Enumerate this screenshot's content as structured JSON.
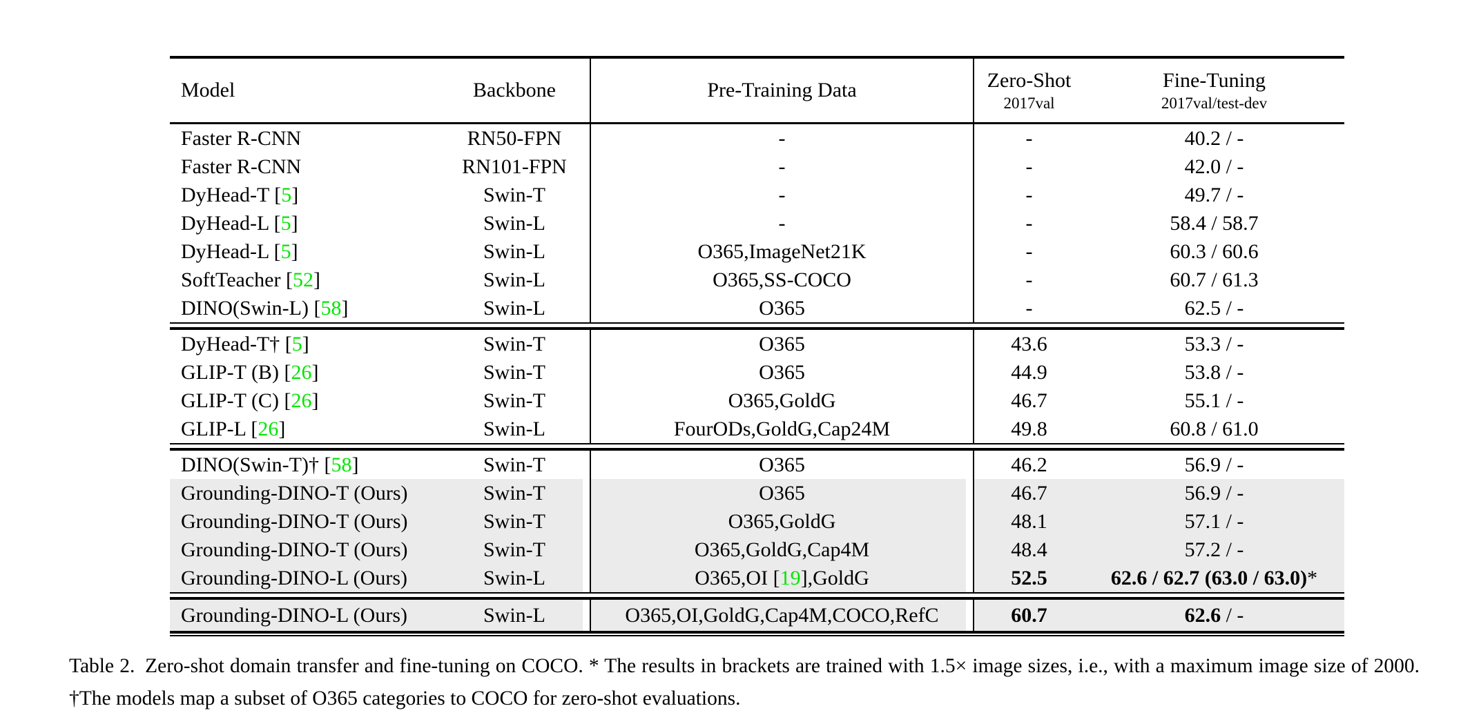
{
  "colors": {
    "ref_green": "#00e600",
    "row_gray": "#ebebeb",
    "rule_black": "#000000"
  },
  "table": {
    "headers": {
      "model": "Model",
      "backbone": "Backbone",
      "pretraining": "Pre-Training Data",
      "zeroshot": {
        "line1": "Zero-Shot",
        "line2": "2017val"
      },
      "finetuning": {
        "line1": "Fine-Tuning",
        "line2": "2017val/test-dev"
      }
    },
    "sections": [
      {
        "rows": [
          {
            "model": [
              {
                "t": "Faster R-CNN"
              }
            ],
            "backbone": [
              {
                "t": "RN50-FPN"
              }
            ],
            "pretrain": [
              {
                "t": "-"
              }
            ],
            "zeroshot": [
              {
                "t": "-"
              }
            ],
            "finetune": [
              {
                "t": "40.2 / -"
              }
            ]
          },
          {
            "model": [
              {
                "t": "Faster R-CNN"
              }
            ],
            "backbone": [
              {
                "t": "RN101-FPN"
              }
            ],
            "pretrain": [
              {
                "t": "-"
              }
            ],
            "zeroshot": [
              {
                "t": "-"
              }
            ],
            "finetune": [
              {
                "t": "42.0 / -"
              }
            ]
          },
          {
            "model": [
              {
                "t": "DyHead-T "
              },
              {
                "r": "5"
              }
            ],
            "backbone": [
              {
                "t": "Swin-T"
              }
            ],
            "pretrain": [
              {
                "t": "-"
              }
            ],
            "zeroshot": [
              {
                "t": "-"
              }
            ],
            "finetune": [
              {
                "t": "49.7 / -"
              }
            ]
          },
          {
            "model": [
              {
                "t": "DyHead-L "
              },
              {
                "r": "5"
              }
            ],
            "backbone": [
              {
                "t": "Swin-L"
              }
            ],
            "pretrain": [
              {
                "t": "-"
              }
            ],
            "zeroshot": [
              {
                "t": "-"
              }
            ],
            "finetune": [
              {
                "t": "58.4 / 58.7"
              }
            ]
          },
          {
            "model": [
              {
                "t": "DyHead-L "
              },
              {
                "r": "5"
              }
            ],
            "backbone": [
              {
                "t": "Swin-L"
              }
            ],
            "pretrain": [
              {
                "t": "O365,ImageNet21K"
              }
            ],
            "zeroshot": [
              {
                "t": "-"
              }
            ],
            "finetune": [
              {
                "t": "60.3 / 60.6"
              }
            ]
          },
          {
            "model": [
              {
                "t": "SoftTeacher "
              },
              {
                "r": "52"
              }
            ],
            "backbone": [
              {
                "t": "Swin-L"
              }
            ],
            "pretrain": [
              {
                "t": "O365,SS-COCO"
              }
            ],
            "zeroshot": [
              {
                "t": "-"
              }
            ],
            "finetune": [
              {
                "t": "60.7 / 61.3"
              }
            ]
          },
          {
            "model": [
              {
                "t": "DINO(Swin-L) "
              },
              {
                "r": "58"
              }
            ],
            "backbone": [
              {
                "t": "Swin-L"
              }
            ],
            "pretrain": [
              {
                "t": "O365"
              }
            ],
            "zeroshot": [
              {
                "t": "-"
              }
            ],
            "finetune": [
              {
                "t": "62.5 / -"
              }
            ]
          }
        ]
      },
      {
        "rows": [
          {
            "model": [
              {
                "t": "DyHead-T† "
              },
              {
                "r": "5"
              }
            ],
            "backbone": [
              {
                "t": "Swin-T"
              }
            ],
            "pretrain": [
              {
                "t": "O365"
              }
            ],
            "zeroshot": [
              {
                "t": "43.6"
              }
            ],
            "finetune": [
              {
                "t": "53.3 / -"
              }
            ]
          },
          {
            "model": [
              {
                "t": "GLIP-T (B) "
              },
              {
                "r": "26"
              }
            ],
            "backbone": [
              {
                "t": "Swin-T"
              }
            ],
            "pretrain": [
              {
                "t": "O365"
              }
            ],
            "zeroshot": [
              {
                "t": "44.9"
              }
            ],
            "finetune": [
              {
                "t": "53.8 / -"
              }
            ]
          },
          {
            "model": [
              {
                "t": "GLIP-T (C) "
              },
              {
                "r": "26"
              }
            ],
            "backbone": [
              {
                "t": "Swin-T"
              }
            ],
            "pretrain": [
              {
                "t": "O365,GoldG"
              }
            ],
            "zeroshot": [
              {
                "t": "46.7"
              }
            ],
            "finetune": [
              {
                "t": "55.1 / -"
              }
            ]
          },
          {
            "model": [
              {
                "t": "GLIP-L "
              },
              {
                "r": "26"
              }
            ],
            "backbone": [
              {
                "t": "Swin-L"
              }
            ],
            "pretrain": [
              {
                "t": "FourODs,GoldG,Cap24M"
              }
            ],
            "zeroshot": [
              {
                "t": "49.8"
              }
            ],
            "finetune": [
              {
                "t": "60.8 / 61.0"
              }
            ]
          }
        ]
      },
      {
        "rows": [
          {
            "model": [
              {
                "t": "DINO(Swin-T)† "
              },
              {
                "r": "58"
              }
            ],
            "backbone": [
              {
                "t": "Swin-T"
              }
            ],
            "pretrain": [
              {
                "t": "O365"
              }
            ],
            "zeroshot": [
              {
                "t": "46.2"
              }
            ],
            "finetune": [
              {
                "t": "56.9 / -"
              }
            ]
          },
          {
            "gray": true,
            "model": [
              {
                "t": "Grounding-DINO-T (Ours)"
              }
            ],
            "backbone": [
              {
                "t": "Swin-T"
              }
            ],
            "pretrain": [
              {
                "t": "O365"
              }
            ],
            "zeroshot": [
              {
                "t": "46.7"
              }
            ],
            "finetune": [
              {
                "t": "56.9 / -"
              }
            ]
          },
          {
            "gray": true,
            "model": [
              {
                "t": "Grounding-DINO-T (Ours)"
              }
            ],
            "backbone": [
              {
                "t": "Swin-T"
              }
            ],
            "pretrain": [
              {
                "t": "O365,GoldG"
              }
            ],
            "zeroshot": [
              {
                "t": "48.1"
              }
            ],
            "finetune": [
              {
                "t": "57.1 / -"
              }
            ]
          },
          {
            "gray": true,
            "model": [
              {
                "t": "Grounding-DINO-T (Ours)"
              }
            ],
            "backbone": [
              {
                "t": "Swin-T"
              }
            ],
            "pretrain": [
              {
                "t": "O365,GoldG,Cap4M"
              }
            ],
            "zeroshot": [
              {
                "t": "48.4"
              }
            ],
            "finetune": [
              {
                "t": "57.2 / -"
              }
            ]
          },
          {
            "gray": true,
            "model": [
              {
                "t": "Grounding-DINO-L (Ours)"
              }
            ],
            "backbone": [
              {
                "t": "Swin-L"
              }
            ],
            "pretrain": [
              {
                "t": "O365,OI "
              },
              {
                "r": "19"
              },
              {
                "t": ",GoldG"
              }
            ],
            "zeroshot": [
              {
                "b": "52.5"
              }
            ],
            "finetune": [
              {
                "b": "62.6 / 62.7 (63.0 / 63.0)"
              },
              {
                "t": "*"
              }
            ]
          }
        ]
      },
      {
        "rows": [
          {
            "gray": true,
            "tall": true,
            "model": [
              {
                "t": "Grounding-DINO-L (Ours)"
              }
            ],
            "backbone": [
              {
                "t": "Swin-L"
              }
            ],
            "pretrain": [
              {
                "t": "O365,OI,GoldG,Cap4M,COCO,RefC"
              }
            ],
            "zeroshot": [
              {
                "b": "60.7"
              }
            ],
            "finetune": [
              {
                "b": "62.6"
              },
              {
                "t": " / -"
              }
            ]
          }
        ]
      }
    ]
  },
  "caption": {
    "text": "Table 2. Zero-shot domain transfer and fine-tuning on COCO. * The results in brackets are trained with 1.5× image sizes, i.e., with a maximum image size of 2000. †The models map a subset of O365 categories to COCO for zero-shot evaluations."
  }
}
